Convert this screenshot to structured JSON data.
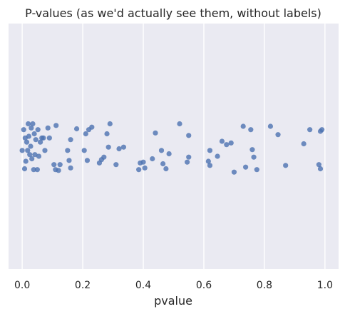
{
  "chart_data": {
    "type": "scatter",
    "title": "P-values (as we'd actually see them, without labels)",
    "xlabel": "pvalue",
    "ylabel": "",
    "xlim": [
      -0.045,
      1.045
    ],
    "xticks": [
      0.0,
      0.2,
      0.4,
      0.6,
      0.8,
      1.0
    ],
    "xtick_labels": [
      "0.0",
      "0.2",
      "0.4",
      "0.6",
      "0.8",
      "1.0"
    ],
    "grid": true,
    "background": "#eaeaf2",
    "point_color": "#4c72b0",
    "jitter_range": [
      -0.3,
      0.3
    ],
    "points": [
      {
        "x": 0.0,
        "y": -0.05
      },
      {
        "x": 0.005,
        "y": 0.2
      },
      {
        "x": 0.008,
        "y": -0.27
      },
      {
        "x": 0.01,
        "y": 0.1
      },
      {
        "x": 0.012,
        "y": -0.18
      },
      {
        "x": 0.015,
        "y": 0.05
      },
      {
        "x": 0.018,
        "y": -0.05
      },
      {
        "x": 0.02,
        "y": 0.27
      },
      {
        "x": 0.022,
        "y": 0.12
      },
      {
        "x": 0.025,
        "y": -0.1
      },
      {
        "x": 0.028,
        "y": 0.0
      },
      {
        "x": 0.03,
        "y": 0.22
      },
      {
        "x": 0.032,
        "y": -0.15
      },
      {
        "x": 0.035,
        "y": 0.27
      },
      {
        "x": 0.038,
        "y": -0.28
      },
      {
        "x": 0.04,
        "y": 0.15
      },
      {
        "x": 0.042,
        "y": -0.1
      },
      {
        "x": 0.045,
        "y": 0.08
      },
      {
        "x": 0.05,
        "y": -0.28
      },
      {
        "x": 0.052,
        "y": 0.2
      },
      {
        "x": 0.055,
        "y": -0.12
      },
      {
        "x": 0.06,
        "y": 0.05
      },
      {
        "x": 0.065,
        "y": 0.1
      },
      {
        "x": 0.07,
        "y": 0.1
      },
      {
        "x": 0.075,
        "y": -0.05
      },
      {
        "x": 0.085,
        "y": 0.22
      },
      {
        "x": 0.09,
        "y": 0.1
      },
      {
        "x": 0.105,
        "y": -0.22
      },
      {
        "x": 0.11,
        "y": -0.28
      },
      {
        "x": 0.112,
        "y": 0.25
      },
      {
        "x": 0.12,
        "y": -0.29
      },
      {
        "x": 0.125,
        "y": -0.22
      },
      {
        "x": 0.15,
        "y": -0.05
      },
      {
        "x": 0.155,
        "y": -0.17
      },
      {
        "x": 0.16,
        "y": 0.08
      },
      {
        "x": 0.16,
        "y": -0.26
      },
      {
        "x": 0.18,
        "y": 0.21
      },
      {
        "x": 0.205,
        "y": -0.05
      },
      {
        "x": 0.21,
        "y": 0.15
      },
      {
        "x": 0.215,
        "y": -0.17
      },
      {
        "x": 0.22,
        "y": 0.2
      },
      {
        "x": 0.23,
        "y": 0.23
      },
      {
        "x": 0.255,
        "y": -0.2
      },
      {
        "x": 0.262,
        "y": -0.16
      },
      {
        "x": 0.27,
        "y": -0.13
      },
      {
        "x": 0.28,
        "y": 0.15
      },
      {
        "x": 0.285,
        "y": -0.01
      },
      {
        "x": 0.29,
        "y": 0.27
      },
      {
        "x": 0.31,
        "y": -0.22
      },
      {
        "x": 0.32,
        "y": -0.03
      },
      {
        "x": 0.335,
        "y": -0.01
      },
      {
        "x": 0.385,
        "y": -0.28
      },
      {
        "x": 0.39,
        "y": -0.2
      },
      {
        "x": 0.4,
        "y": -0.19
      },
      {
        "x": 0.405,
        "y": -0.26
      },
      {
        "x": 0.43,
        "y": -0.15
      },
      {
        "x": 0.44,
        "y": 0.16
      },
      {
        "x": 0.46,
        "y": -0.05
      },
      {
        "x": 0.465,
        "y": -0.21
      },
      {
        "x": 0.475,
        "y": -0.27
      },
      {
        "x": 0.485,
        "y": -0.09
      },
      {
        "x": 0.52,
        "y": 0.27
      },
      {
        "x": 0.545,
        "y": -0.19
      },
      {
        "x": 0.55,
        "y": 0.13
      },
      {
        "x": 0.55,
        "y": -0.13
      },
      {
        "x": 0.615,
        "y": -0.18
      },
      {
        "x": 0.62,
        "y": -0.05
      },
      {
        "x": 0.62,
        "y": -0.23
      },
      {
        "x": 0.645,
        "y": -0.12
      },
      {
        "x": 0.66,
        "y": 0.06
      },
      {
        "x": 0.675,
        "y": 0.02
      },
      {
        "x": 0.69,
        "y": 0.04
      },
      {
        "x": 0.7,
        "y": -0.31
      },
      {
        "x": 0.73,
        "y": 0.24
      },
      {
        "x": 0.738,
        "y": -0.25
      },
      {
        "x": 0.755,
        "y": 0.2
      },
      {
        "x": 0.76,
        "y": -0.04
      },
      {
        "x": 0.765,
        "y": -0.13
      },
      {
        "x": 0.775,
        "y": -0.28
      },
      {
        "x": 0.82,
        "y": 0.24
      },
      {
        "x": 0.845,
        "y": 0.14
      },
      {
        "x": 0.87,
        "y": -0.23
      },
      {
        "x": 0.93,
        "y": 0.03
      },
      {
        "x": 0.95,
        "y": 0.2
      },
      {
        "x": 0.98,
        "y": -0.22
      },
      {
        "x": 0.985,
        "y": 0.18
      },
      {
        "x": 0.985,
        "y": -0.27
      },
      {
        "x": 0.99,
        "y": 0.2
      }
    ]
  }
}
